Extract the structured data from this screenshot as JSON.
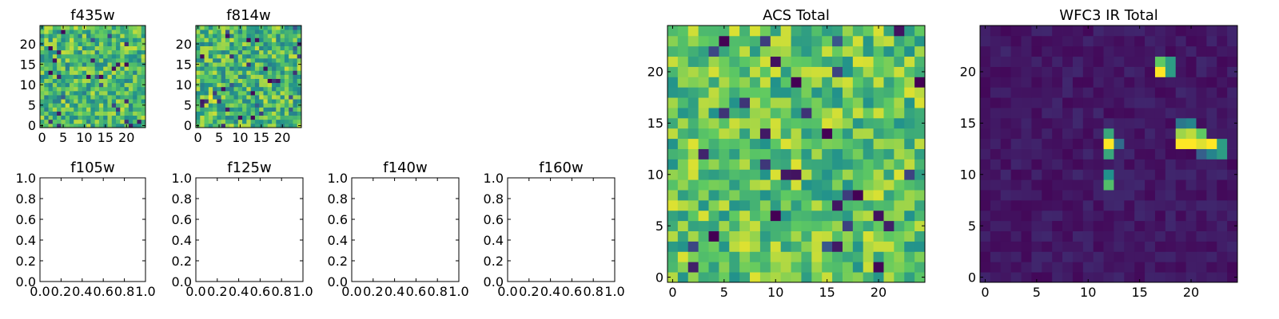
{
  "figure": {
    "colormap": [
      "#440154",
      "#3b528b",
      "#21918c",
      "#5ec962",
      "#fde725"
    ]
  },
  "chart_data": [
    {
      "type": "heatmap",
      "title": "f435w",
      "xlabel": "",
      "ylabel": "",
      "xlim": [
        -0.5,
        24.5
      ],
      "ylim": [
        -0.5,
        24.5
      ],
      "xticks": [
        "0",
        "5",
        "10",
        "15",
        "20"
      ],
      "yticks": [
        "0",
        "5",
        "10",
        "15",
        "20"
      ],
      "grid": false,
      "shape": [
        25,
        25
      ],
      "description": "noisy image; values mostly 0.55-0.9 of colormap range with scattered low pixels"
    },
    {
      "type": "heatmap",
      "title": "f814w",
      "xlabel": "",
      "ylabel": "",
      "xlim": [
        -0.5,
        24.5
      ],
      "ylim": [
        -0.5,
        24.5
      ],
      "xticks": [
        "0",
        "5",
        "10",
        "15",
        "20"
      ],
      "yticks": [
        "0",
        "5",
        "10",
        "15",
        "20"
      ],
      "grid": false,
      "shape": [
        25,
        25
      ],
      "hotspots": [
        {
          "x": 3,
          "y": 7,
          "value": 1.0
        },
        {
          "x": 4,
          "y": 6,
          "value": 0.95
        },
        {
          "x": 3,
          "y": 6,
          "value": 0.9
        }
      ]
    },
    {
      "type": "line",
      "title": "f105w",
      "xlim": [
        0.0,
        1.0
      ],
      "ylim": [
        0.0,
        1.0
      ],
      "xticks": [
        "0.0",
        "0.2",
        "0.4",
        "0.6",
        "0.8",
        "1.0"
      ],
      "yticks": [
        "0.0",
        "0.2",
        "0.4",
        "0.6",
        "0.8",
        "1.0"
      ],
      "series": []
    },
    {
      "type": "line",
      "title": "f125w",
      "xlim": [
        0.0,
        1.0
      ],
      "ylim": [
        0.0,
        1.0
      ],
      "xticks": [
        "0.0",
        "0.2",
        "0.4",
        "0.6",
        "0.8",
        "1.0"
      ],
      "yticks": [
        "0.0",
        "0.2",
        "0.4",
        "0.6",
        "0.8",
        "1.0"
      ],
      "series": []
    },
    {
      "type": "line",
      "title": "f140w",
      "xlim": [
        0.0,
        1.0
      ],
      "ylim": [
        0.0,
        1.0
      ],
      "xticks": [
        "0.0",
        "0.2",
        "0.4",
        "0.6",
        "0.8",
        "1.0"
      ],
      "yticks": [
        "0.0",
        "0.2",
        "0.4",
        "0.6",
        "0.8",
        "1.0"
      ],
      "series": []
    },
    {
      "type": "line",
      "title": "f160w",
      "xlim": [
        0.0,
        1.0
      ],
      "ylim": [
        0.0,
        1.0
      ],
      "xticks": [
        "0.0",
        "0.2",
        "0.4",
        "0.6",
        "0.8",
        "1.0"
      ],
      "yticks": [
        "0.0",
        "0.2",
        "0.4",
        "0.6",
        "0.8",
        "1.0"
      ],
      "series": []
    },
    {
      "type": "heatmap",
      "title": "ACS Total",
      "xlabel": "",
      "ylabel": "",
      "xlim": [
        -0.5,
        24.5
      ],
      "ylim": [
        -0.5,
        24.5
      ],
      "xticks": [
        "0",
        "5",
        "10",
        "15",
        "20"
      ],
      "yticks": [
        "0",
        "5",
        "10",
        "15",
        "20"
      ],
      "grid": false,
      "shape": [
        25,
        25
      ],
      "lowpixels": [
        {
          "x": 5,
          "y": 23
        },
        {
          "x": 12,
          "y": 19
        },
        {
          "x": 15,
          "y": 14
        },
        {
          "x": 18,
          "y": 8
        },
        {
          "x": 10,
          "y": 6
        },
        {
          "x": 4,
          "y": 4
        },
        {
          "x": 24,
          "y": 19
        }
      ]
    },
    {
      "type": "heatmap",
      "title": "WFC3 IR Total",
      "xlabel": "",
      "ylabel": "",
      "xlim": [
        -0.5,
        24.5
      ],
      "ylim": [
        -0.5,
        24.5
      ],
      "xticks": [
        "0",
        "5",
        "10",
        "15",
        "20"
      ],
      "yticks": [
        "0",
        "5",
        "10",
        "15",
        "20"
      ],
      "grid": false,
      "shape": [
        25,
        25
      ],
      "sources": [
        {
          "x": 17,
          "y": 20,
          "value": 1.0
        },
        {
          "x": 17,
          "y": 21,
          "value": 0.75
        },
        {
          "x": 18,
          "y": 21,
          "value": 0.55
        },
        {
          "x": 18,
          "y": 20,
          "value": 0.55
        },
        {
          "x": 12,
          "y": 13,
          "value": 1.0
        },
        {
          "x": 12,
          "y": 14,
          "value": 0.6
        },
        {
          "x": 12,
          "y": 12,
          "value": 0.6
        },
        {
          "x": 13,
          "y": 13,
          "value": 0.35
        },
        {
          "x": 12,
          "y": 9,
          "value": 0.7
        },
        {
          "x": 12,
          "y": 10,
          "value": 0.5
        },
        {
          "x": 19,
          "y": 14,
          "value": 0.85
        },
        {
          "x": 20,
          "y": 14,
          "value": 0.9
        },
        {
          "x": 21,
          "y": 14,
          "value": 0.75
        },
        {
          "x": 19,
          "y": 13,
          "value": 1.0
        },
        {
          "x": 20,
          "y": 13,
          "value": 1.0
        },
        {
          "x": 21,
          "y": 13,
          "value": 0.95
        },
        {
          "x": 22,
          "y": 13,
          "value": 1.0
        },
        {
          "x": 23,
          "y": 13,
          "value": 0.55
        },
        {
          "x": 19,
          "y": 15,
          "value": 0.4
        },
        {
          "x": 20,
          "y": 15,
          "value": 0.45
        },
        {
          "x": 22,
          "y": 12,
          "value": 0.45
        },
        {
          "x": 23,
          "y": 12,
          "value": 0.55
        },
        {
          "x": 21,
          "y": 12,
          "value": 0.3
        }
      ]
    }
  ]
}
